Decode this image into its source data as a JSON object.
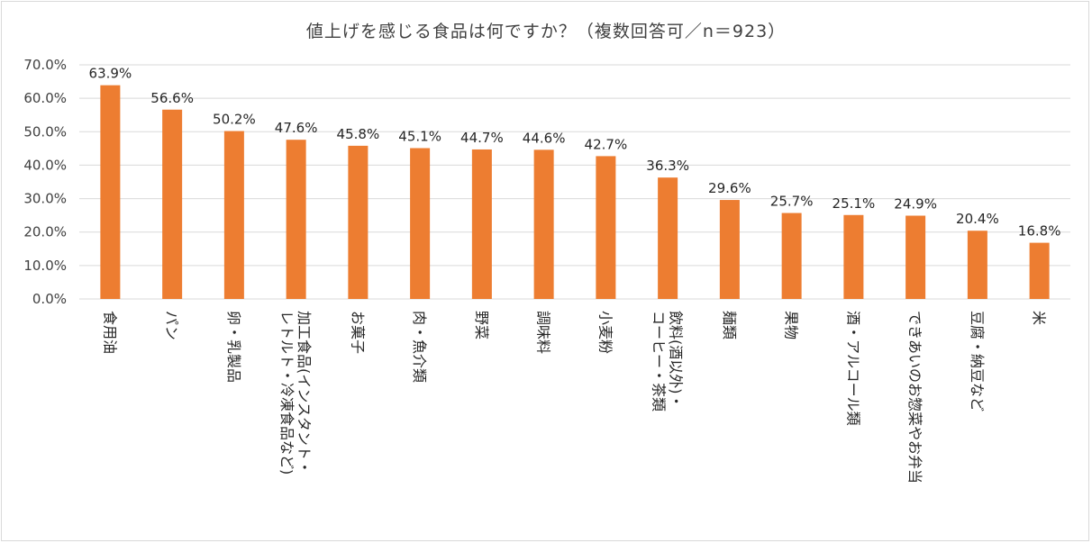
{
  "chart_data": {
    "type": "bar",
    "title": "値上げを感じる食品は何ですか？（複数回答可／n＝923）",
    "categories": [
      "食用油",
      "パン",
      "卵・乳製品",
      "加工食品(インスタント・レトルト・冷凍食品など)",
      "お菓子",
      "肉・魚介類",
      "野菜",
      "調味料",
      "小麦粉",
      "飲料(酒以外)・コーヒー・茶類",
      "麺類",
      "果物",
      "酒・アルコール類",
      "できあいのお惣菜やお弁当",
      "豆腐・納豆など",
      "米"
    ],
    "category_lines": [
      [
        "食用油"
      ],
      [
        "パン"
      ],
      [
        "卵・乳製品"
      ],
      [
        "加工食品(インスタント・",
        "レトルト・冷凍食品など)"
      ],
      [
        "お菓子"
      ],
      [
        "肉・魚介類"
      ],
      [
        "野菜"
      ],
      [
        "調味料"
      ],
      [
        "小麦粉"
      ],
      [
        "飲料(酒以外)・",
        "コーヒー・茶類"
      ],
      [
        "麺類"
      ],
      [
        "果物"
      ],
      [
        "酒・アルコール類"
      ],
      [
        "できあいのお惣菜やお弁当"
      ],
      [
        "豆腐・納豆など"
      ],
      [
        "米"
      ]
    ],
    "values": [
      63.9,
      56.6,
      50.2,
      47.6,
      45.8,
      45.1,
      44.7,
      44.6,
      42.7,
      36.3,
      29.6,
      25.7,
      25.1,
      24.9,
      20.4,
      16.8
    ],
    "value_labels": [
      "63.9%",
      "56.6%",
      "50.2%",
      "47.6%",
      "45.8%",
      "45.1%",
      "44.7%",
      "44.6%",
      "42.7%",
      "36.3%",
      "29.6%",
      "25.7%",
      "25.1%",
      "24.9%",
      "20.4%",
      "16.8%"
    ],
    "yticks": [
      0,
      10,
      20,
      30,
      40,
      50,
      60,
      70
    ],
    "ytick_labels": [
      "0.0%",
      "10.0%",
      "20.0%",
      "30.0%",
      "40.0%",
      "50.0%",
      "60.0%",
      "70.0%"
    ],
    "ylim": [
      0,
      70
    ],
    "xlabel": "",
    "ylabel": "",
    "grid": true,
    "bar_color": "#ED7D31",
    "grid_color": "#d9d9d9"
  }
}
